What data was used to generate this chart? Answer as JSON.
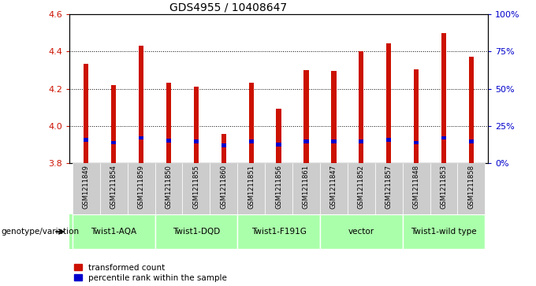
{
  "title": "GDS4955 / 10408647",
  "samples": [
    "GSM1211849",
    "GSM1211854",
    "GSM1211859",
    "GSM1211850",
    "GSM1211855",
    "GSM1211860",
    "GSM1211851",
    "GSM1211856",
    "GSM1211861",
    "GSM1211847",
    "GSM1211852",
    "GSM1211857",
    "GSM1211848",
    "GSM1211853",
    "GSM1211858"
  ],
  "red_values": [
    4.335,
    4.22,
    4.43,
    4.23,
    4.21,
    3.955,
    4.23,
    4.09,
    4.3,
    4.295,
    4.4,
    4.445,
    4.305,
    4.5,
    4.37
  ],
  "blue_values": [
    3.925,
    3.91,
    3.935,
    3.92,
    3.915,
    3.895,
    3.915,
    3.9,
    3.915,
    3.915,
    3.915,
    3.925,
    3.91,
    3.935,
    3.915
  ],
  "y_min": 3.8,
  "y_max": 4.6,
  "y_ticks": [
    3.8,
    4.0,
    4.2,
    4.4,
    4.6
  ],
  "y_right_ticks": [
    0,
    25,
    50,
    75,
    100
  ],
  "y_right_labels": [
    "0%",
    "25%",
    "50%",
    "75%",
    "100%"
  ],
  "groups": [
    {
      "label": "Twist1-AQA",
      "start": 0,
      "end": 2
    },
    {
      "label": "Twist1-DQD",
      "start": 3,
      "end": 5
    },
    {
      "label": "Twist1-F191G",
      "start": 6,
      "end": 8
    },
    {
      "label": "vector",
      "start": 9,
      "end": 11
    },
    {
      "label": "Twist1-wild type",
      "start": 12,
      "end": 14
    }
  ],
  "group_color": "#aaffaa",
  "genotype_label": "genotype/variation",
  "legend_red": "transformed count",
  "legend_blue": "percentile rank within the sample",
  "bar_color": "#cc1100",
  "blue_color": "#0000cc",
  "bar_width": 0.18,
  "background_color": "#ffffff",
  "plot_bg": "#ffffff",
  "tick_label_color": "#cc1100",
  "right_tick_color": "#0000cc",
  "sample_bg": "#cccccc"
}
